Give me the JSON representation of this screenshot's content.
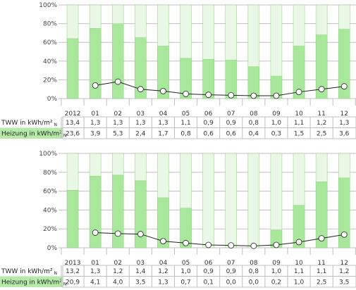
{
  "colors": {
    "bar_fill": "#a8e89a",
    "bar_bg": "#e9f8e4",
    "bar_edge": "#8fd07e",
    "grid": "#bfbfbf",
    "line": "#222222",
    "marker_fill": "#ffffff",
    "row_heizung_bg": "#b6eaa9",
    "row_tww_bg": "#ffffff"
  },
  "chart_data": [
    {
      "type": "bar",
      "categories": [
        "2012",
        "01",
        "02",
        "03",
        "04",
        "05",
        "06",
        "07",
        "08",
        "09",
        "10",
        "11",
        "12"
      ],
      "series": [
        {
          "values": [
            64,
            75,
            80,
            65,
            56,
            43,
            42,
            41,
            34,
            24,
            56,
            68,
            74
          ]
        },
        {
          "type": "line",
          "values": [
            null,
            14,
            18,
            10,
            8,
            5,
            4,
            3.5,
            3,
            3,
            7,
            10,
            13
          ]
        }
      ],
      "y_ticks": [
        "0%",
        "20%",
        "40%",
        "60%",
        "80%",
        "100%"
      ],
      "ylim": [
        0,
        100
      ],
      "grid": true,
      "table": [
        {
          "label": "TWW in kWh/m²",
          "label_sub": "N",
          "values": [
            "13,4",
            "1,3",
            "1,3",
            "1,3",
            "1,3",
            "1,1",
            "0,9",
            "0,9",
            "0,8",
            "1,0",
            "1,1",
            "1,2",
            "1,3"
          ]
        },
        {
          "label": "Heizung in kWh/m²",
          "label_sub": "N",
          "values": [
            "23,6",
            "3,9",
            "5,3",
            "2,4",
            "1,7",
            "0,8",
            "0,6",
            "0,6",
            "0,4",
            "0,3",
            "1,5",
            "2,5",
            "3,6"
          ]
        }
      ]
    },
    {
      "type": "bar",
      "categories": [
        "2013",
        "01",
        "02",
        "03",
        "04",
        "05",
        "06",
        "07",
        "08",
        "09",
        "10",
        "11",
        "12"
      ],
      "series": [
        {
          "values": [
            61,
            76,
            77,
            71,
            53,
            42,
            0,
            0,
            0,
            19,
            45,
            70,
            74
          ]
        },
        {
          "type": "line",
          "values": [
            null,
            16,
            15,
            14.5,
            7,
            5,
            3,
            2.5,
            2,
            3,
            6,
            10,
            14
          ]
        }
      ],
      "y_ticks": [
        "0%",
        "20%",
        "40%",
        "60%",
        "80%",
        "100%"
      ],
      "ylim": [
        0,
        100
      ],
      "grid": true,
      "table": [
        {
          "label": "TWW in kWh/m²",
          "label_sub": "N",
          "values": [
            "13,2",
            "1,3",
            "1,2",
            "1,4",
            "1,2",
            "1,0",
            "0,9",
            "0,9",
            "0,8",
            "1,0",
            "1,1",
            "1,1",
            "1,2"
          ]
        },
        {
          "label": "Heizung in kWh/m²",
          "label_sub": "N",
          "values": [
            "20,9",
            "4,1",
            "4,0",
            "3,5",
            "1,3",
            "0,7",
            "0,1",
            "0,0",
            "0,0",
            "0,2",
            "1,0",
            "2,5",
            "3,5"
          ]
        }
      ]
    }
  ]
}
